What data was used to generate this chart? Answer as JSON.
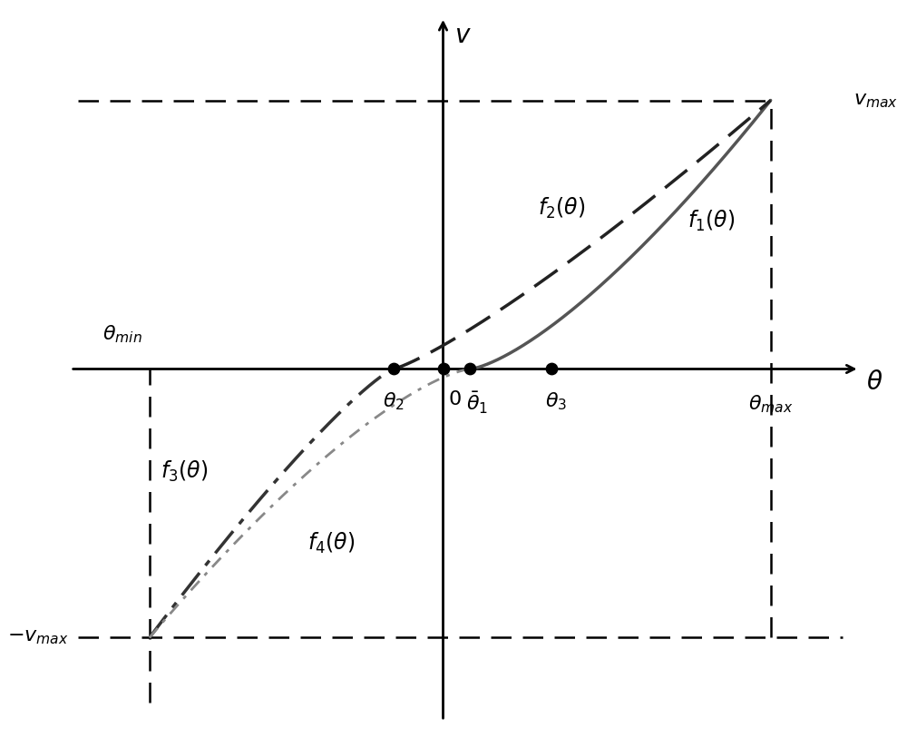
{
  "xlim": [
    -1.7,
    1.9
  ],
  "ylim": [
    -1.35,
    1.35
  ],
  "theta_min": -1.3,
  "theta_max": 1.45,
  "theta_1": 0.12,
  "theta_2": -0.22,
  "theta_3": 0.48,
  "v_max": 1.0,
  "bg_color": "#ffffff",
  "curve_color_f1": "#555555",
  "curve_color_f2": "#222222",
  "curve_color_f3": "#333333",
  "curve_color_f4": "#888888",
  "n1": 1.4,
  "n2": 1.2,
  "n3": 1.2,
  "n4": 1.4
}
